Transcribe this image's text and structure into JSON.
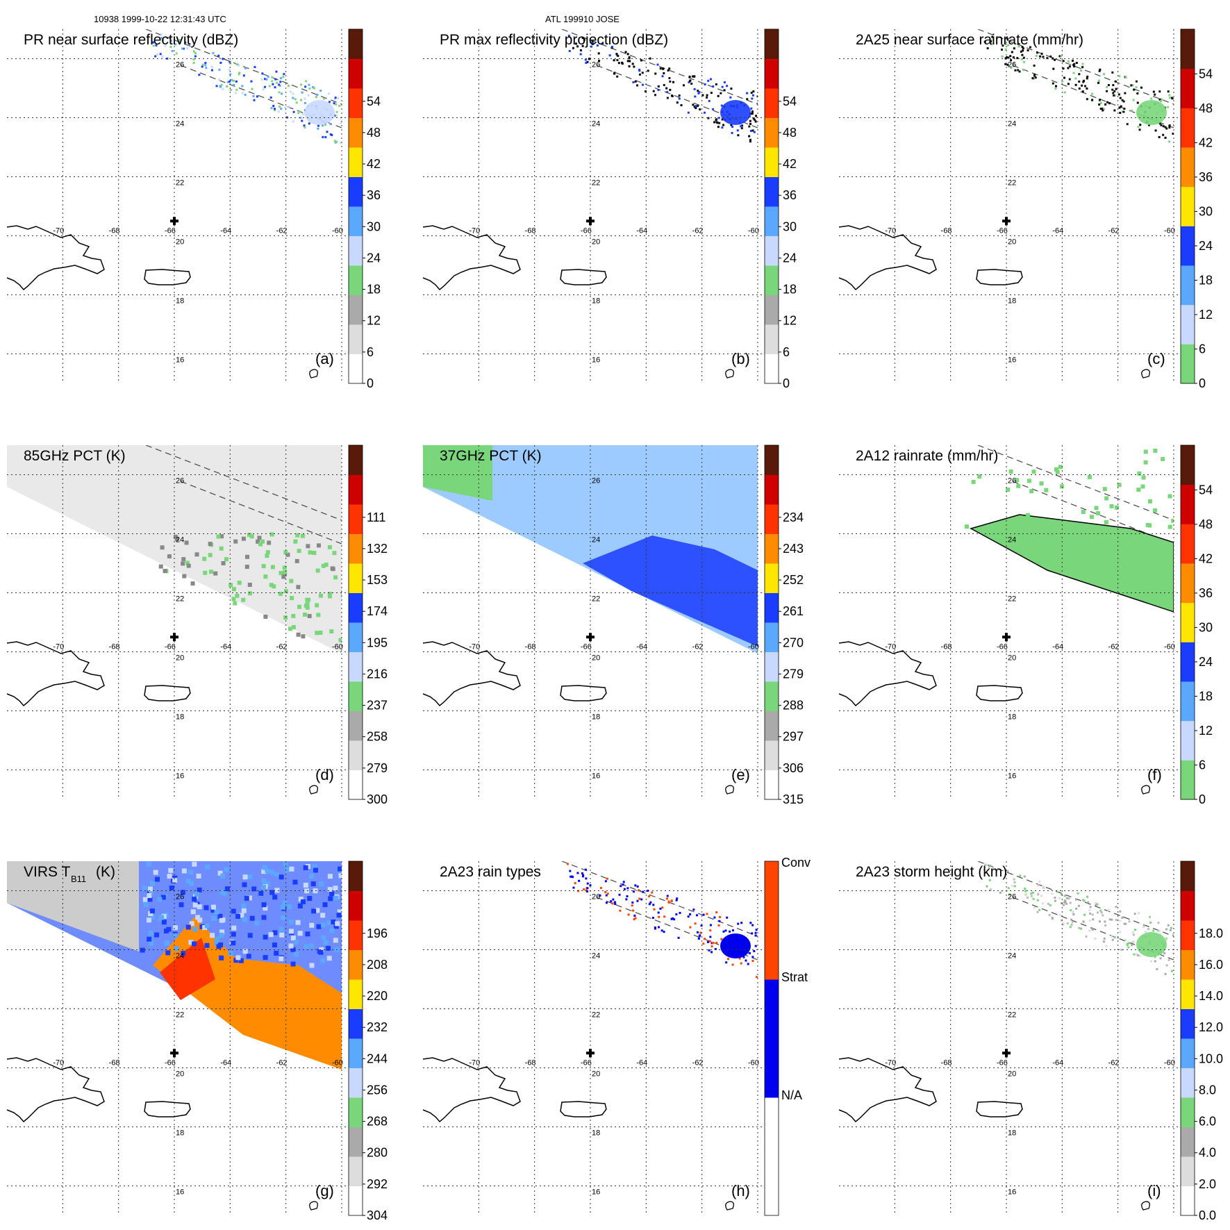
{
  "header": {
    "left_label": "10938 1999-10-22 12:31:43 UTC",
    "center_label": "ATL 199910 JOSE"
  },
  "map": {
    "lon_ticks": [
      "-70",
      "-68",
      "-66",
      "-64",
      "-62",
      "-60"
    ],
    "lat_ticks": [
      "26",
      "24",
      "22",
      "20",
      "18",
      "16"
    ],
    "lon_range": [
      -72,
      -60
    ],
    "lat_range": [
      15,
      27
    ]
  },
  "chart_data": [
    {
      "type": "heatmap",
      "id": "a",
      "title": "PR near surface reflectivity (dBZ)",
      "panel_letter": "(a)",
      "colorbar": {
        "ticks": [
          "0",
          "6",
          "12",
          "18",
          "24",
          "30",
          "36",
          "42",
          "48",
          "54"
        ]
      },
      "colors": [
        "#ffffff",
        "#dddddd",
        "#aaaaaa",
        "#7ad67a",
        "#c8d8ff",
        "#5aa8ff",
        "#1a3cff",
        "#ffe600",
        "#ff8c00",
        "#ff3300",
        "#d10000",
        "#5a1a0a"
      ]
    },
    {
      "type": "heatmap",
      "id": "b",
      "title": "PR max reflectivity projection (dBZ)",
      "panel_letter": "(b)",
      "colorbar": {
        "ticks": [
          "0",
          "6",
          "12",
          "18",
          "24",
          "30",
          "36",
          "42",
          "48",
          "54"
        ]
      },
      "colors": [
        "#ffffff",
        "#dddddd",
        "#aaaaaa",
        "#7ad67a",
        "#c8d8ff",
        "#5aa8ff",
        "#1a3cff",
        "#ffe600",
        "#ff8c00",
        "#ff3300",
        "#d10000",
        "#5a1a0a"
      ]
    },
    {
      "type": "heatmap",
      "id": "c",
      "title": "2A25 near surface rainrate (mm/hr)",
      "panel_letter": "(c)",
      "colorbar": {
        "ticks": [
          "0",
          "6",
          "12",
          "18",
          "24",
          "30",
          "36",
          "42",
          "48",
          "54"
        ]
      },
      "colors": [
        "#7ad67a",
        "#c8d8ff",
        "#5aa8ff",
        "#1a3cff",
        "#ffe600",
        "#ff8c00",
        "#ff3300",
        "#d10000",
        "#5a1a0a"
      ]
    },
    {
      "type": "heatmap",
      "id": "d",
      "title": "85GHz PCT (K)",
      "panel_letter": "(d)",
      "colorbar": {
        "ticks": [
          "300",
          "279",
          "258",
          "237",
          "216",
          "195",
          "174",
          "153",
          "132",
          "111"
        ]
      },
      "colors": [
        "#ffffff",
        "#dddddd",
        "#aaaaaa",
        "#7ad67a",
        "#c8d8ff",
        "#5aa8ff",
        "#1a3cff",
        "#ffe600",
        "#ff8c00",
        "#ff3300",
        "#d10000",
        "#5a1a0a"
      ]
    },
    {
      "type": "heatmap",
      "id": "e",
      "title": "37GHz PCT (K)",
      "panel_letter": "(e)",
      "colorbar": {
        "ticks": [
          "315",
          "306",
          "297",
          "288",
          "279",
          "270",
          "261",
          "252",
          "243",
          "234"
        ]
      },
      "colors": [
        "#ffffff",
        "#dddddd",
        "#aaaaaa",
        "#7ad67a",
        "#c8d8ff",
        "#5aa8ff",
        "#1a3cff",
        "#ffe600",
        "#ff8c00",
        "#ff3300",
        "#d10000",
        "#5a1a0a"
      ]
    },
    {
      "type": "heatmap",
      "id": "f",
      "title": "2A12 rainrate (mm/hr)",
      "panel_letter": "(f)",
      "colorbar": {
        "ticks": [
          "0",
          "6",
          "12",
          "18",
          "24",
          "30",
          "36",
          "42",
          "48",
          "54"
        ]
      },
      "colors": [
        "#7ad67a",
        "#c8d8ff",
        "#5aa8ff",
        "#1a3cff",
        "#ffe600",
        "#ff8c00",
        "#ff3300",
        "#d10000",
        "#5a1a0a"
      ]
    },
    {
      "type": "heatmap",
      "id": "g",
      "title": "VIRS T",
      "title_sub": "B11",
      "title_unit": "(K)",
      "panel_letter": "(g)",
      "colorbar": {
        "ticks": [
          "304",
          "292",
          "280",
          "268",
          "256",
          "244",
          "232",
          "220",
          "208",
          "196"
        ]
      },
      "colors": [
        "#ffffff",
        "#dddddd",
        "#aaaaaa",
        "#7ad67a",
        "#c8d8ff",
        "#5aa8ff",
        "#1a3cff",
        "#ffe600",
        "#ff8c00",
        "#ff3300",
        "#d10000",
        "#5a1a0a"
      ]
    },
    {
      "type": "heatmap",
      "id": "h",
      "title": "2A23 rain types",
      "panel_letter": "(h)",
      "colorbar": {
        "ticks": [
          "N/A",
          "Strat",
          "Conv"
        ]
      },
      "colors": [
        "#ffffff",
        "#0000ee",
        "#ff4400"
      ]
    },
    {
      "type": "heatmap",
      "id": "i",
      "title": "2A23 storm height (km)",
      "panel_letter": "(i)",
      "colorbar": {
        "ticks": [
          "0.0",
          "2.0",
          "4.0",
          "6.0",
          "8.0",
          "10.0",
          "12.0",
          "14.0",
          "16.0",
          "18.0"
        ]
      },
      "colors": [
        "#ffffff",
        "#dddddd",
        "#aaaaaa",
        "#7ad67a",
        "#c8d8ff",
        "#5aa8ff",
        "#1a3cff",
        "#ffe600",
        "#ff8c00",
        "#ff3300",
        "#d10000",
        "#5a1a0a"
      ]
    }
  ]
}
